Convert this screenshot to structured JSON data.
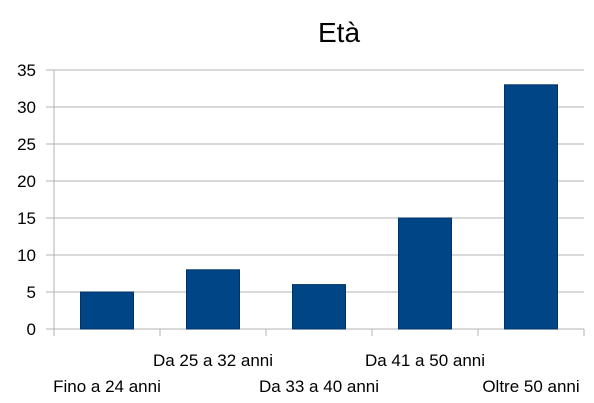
{
  "chart_data": {
    "type": "bar",
    "title": "Età",
    "categories": [
      "Fino a 24 anni",
      "Da 25 a 32 anni",
      "Da 33 a 40 anni",
      "Da 41 a 50 anni",
      "Oltre 50 anni"
    ],
    "values": [
      5,
      8,
      6,
      15,
      33
    ],
    "ylim": [
      0,
      35
    ],
    "yticks": [
      0,
      5,
      10,
      15,
      20,
      25,
      30,
      35
    ],
    "grid": true,
    "legend": "none",
    "colors": {
      "bar": "#004586",
      "grid": "#b3b3b3",
      "axis": "#b3b3b3"
    }
  }
}
